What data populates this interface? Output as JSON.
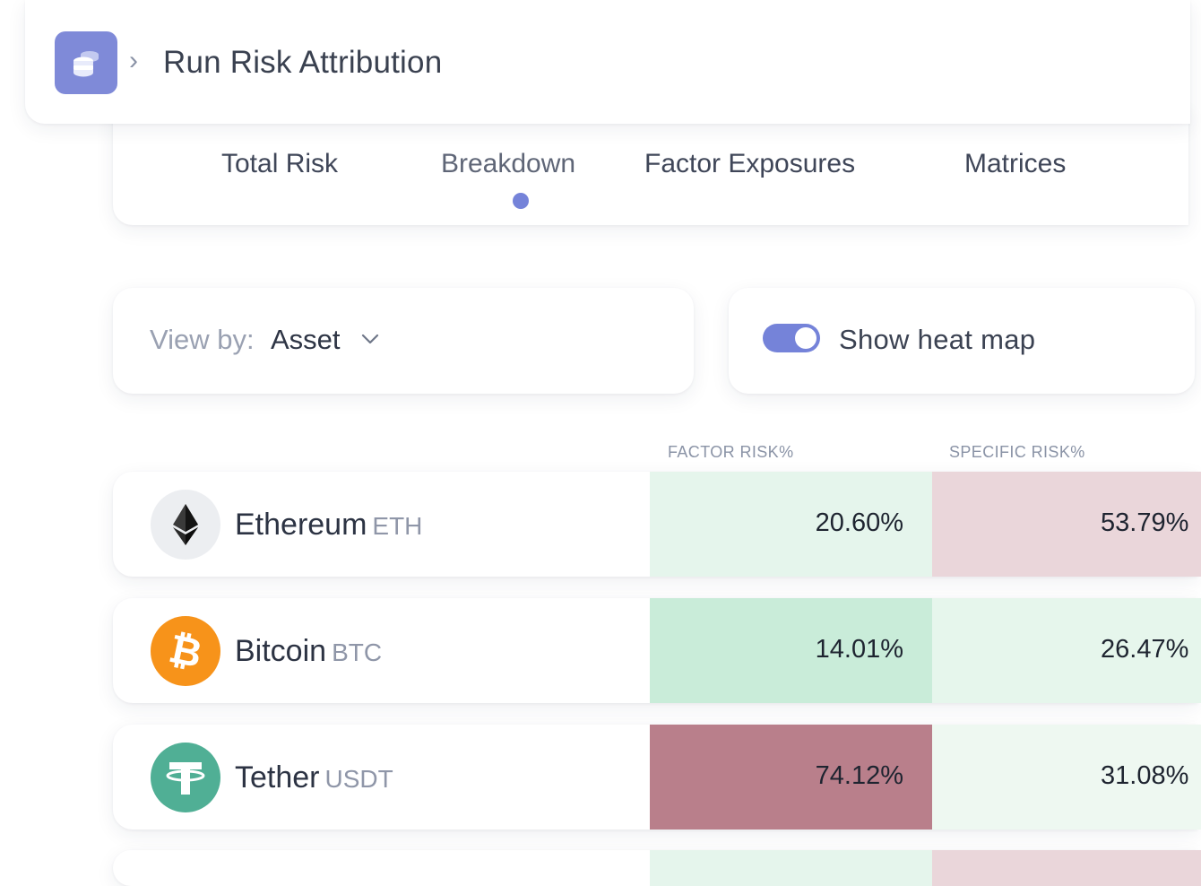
{
  "header": {
    "title": "Run Risk Attribution",
    "app_icon": "coins-stack-icon",
    "chevron": "›"
  },
  "tabs": [
    {
      "label": "Total Risk",
      "active": false
    },
    {
      "label": "Breakdown",
      "active": true
    },
    {
      "label": "Factor Exposures",
      "active": false
    },
    {
      "label": "Matrices",
      "active": false
    }
  ],
  "view_by": {
    "label": "View by:",
    "value": "Asset"
  },
  "heat_map": {
    "label": "Show heat map",
    "enabled": true
  },
  "columns": {
    "factor": "FACTOR RISK%",
    "specific": "SPECIFIC RISK%"
  },
  "colors": {
    "accent": "#7583d9",
    "eth_icon_bg": "#eceef1",
    "btc": "#f7931a",
    "usdt": "#50af95"
  },
  "rows": [
    {
      "name": "Ethereum",
      "ticker": "ETH",
      "icon": "ethereum-icon",
      "factor": "20.60%",
      "specific": "53.79%",
      "factor_color": "#e5f5ec",
      "specific_color": "#ead6da"
    },
    {
      "name": "Bitcoin",
      "ticker": "BTC",
      "icon": "bitcoin-icon",
      "factor": "14.01%",
      "specific": "26.47%",
      "factor_color": "#c9ecd9",
      "specific_color": "#e6f6ec"
    },
    {
      "name": "Tether",
      "ticker": "USDT",
      "icon": "tether-icon",
      "factor": "74.12%",
      "specific": "31.08%",
      "factor_color": "#b97f8b",
      "specific_color": "#eef8f1"
    }
  ],
  "partial_row": {
    "factor_color": "#e5f5ec",
    "specific_color": "#ead6da"
  }
}
